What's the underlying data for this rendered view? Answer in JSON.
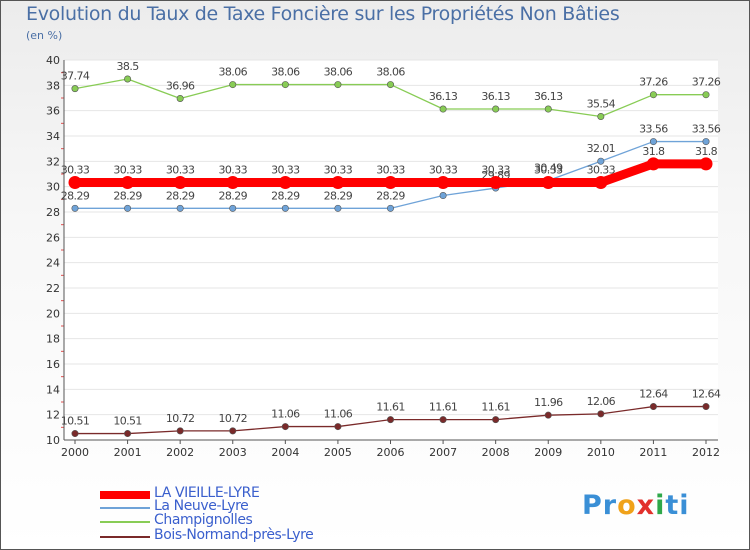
{
  "title": "Evolution du Taux de Taxe Foncière sur les Propriétés Non Bâties",
  "subtitle": "(en %)",
  "logo": {
    "parts": [
      "Pr",
      "o",
      "x",
      "i",
      "ti"
    ],
    "colors": [
      "#3a8fd6",
      "#f0a21a",
      "#e2302c",
      "#2fa84a",
      "#3a8fd6"
    ]
  },
  "chart_data": {
    "type": "line",
    "title": "Evolution du Taux de Taxe Foncière sur les Propriétés Non Bâties",
    "ylabel": "(en %)",
    "xlabel": "",
    "ylim": [
      10,
      40
    ],
    "yticks": [
      10,
      12,
      14,
      16,
      18,
      20,
      22,
      24,
      26,
      28,
      30,
      32,
      34,
      36,
      38,
      40
    ],
    "categories": [
      "2000",
      "2001",
      "2002",
      "2003",
      "2004",
      "2005",
      "2006",
      "2007",
      "2008",
      "2009",
      "2010",
      "2011",
      "2012"
    ],
    "series": [
      {
        "name": "Bois-Normand-près-Lyre",
        "color": "#7a2a2a",
        "values": [
          10.51,
          10.51,
          10.72,
          10.72,
          11.06,
          11.06,
          11.61,
          11.61,
          11.61,
          11.96,
          12.06,
          12.64,
          12.64
        ]
      },
      {
        "name": "Champignolles",
        "color": "#88cc55",
        "values": [
          37.74,
          38.5,
          36.96,
          38.06,
          38.06,
          38.06,
          38.06,
          36.13,
          36.13,
          36.13,
          35.54,
          37.26,
          37.26
        ]
      },
      {
        "name": "La Neuve-Lyre",
        "color": "#6fa3d8",
        "values": [
          28.29,
          28.29,
          28.29,
          28.29,
          28.29,
          28.29,
          28.29,
          29.3,
          29.89,
          30.49,
          32.01,
          33.56,
          33.56
        ]
      },
      {
        "name": "LA VIEILLE-LYRE",
        "color": "#ff0000",
        "values": [
          30.33,
          30.33,
          30.33,
          30.33,
          30.33,
          30.33,
          30.33,
          30.33,
          30.33,
          30.33,
          30.33,
          31.8,
          31.8
        ]
      }
    ],
    "legend": [
      {
        "name": "LA VIEILLE-LYRE",
        "color": "#ff0000",
        "thick": true
      },
      {
        "name": "La Neuve-Lyre",
        "color": "#6fa3d8",
        "thick": false
      },
      {
        "name": "Champignolles",
        "color": "#88cc55",
        "thick": false
      },
      {
        "name": "Bois-Normand-près-Lyre",
        "color": "#7a2a2a",
        "thick": false
      }
    ],
    "legend_position": "bottom-left"
  }
}
